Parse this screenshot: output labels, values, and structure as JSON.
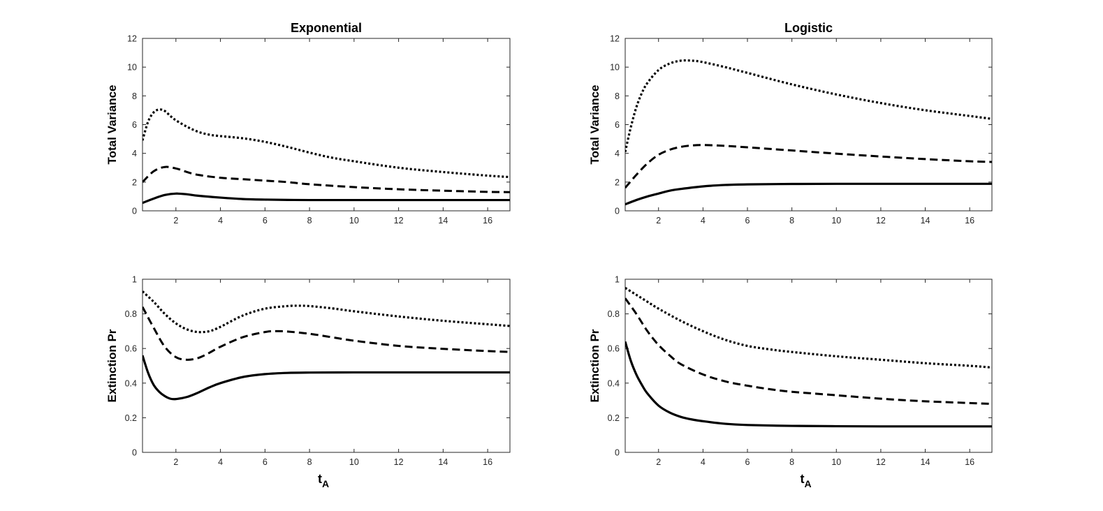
{
  "chart_data": [
    {
      "id": "tl",
      "type": "line",
      "title": "Exponential",
      "xlabel": "",
      "ylabel": "Total Variance",
      "xlim": [
        0.5,
        17
      ],
      "ylim": [
        0,
        12
      ],
      "xticks": [
        2,
        4,
        6,
        8,
        10,
        12,
        14,
        16
      ],
      "yticks": [
        0,
        2,
        4,
        6,
        8,
        10,
        12
      ],
      "grid": false,
      "series": [
        {
          "name": "solid",
          "style": "solid",
          "x": [
            0.5,
            1,
            1.5,
            2,
            2.5,
            3,
            4,
            5,
            6,
            7,
            8,
            10,
            12,
            14,
            16,
            17
          ],
          "values": [
            0.55,
            0.85,
            1.1,
            1.2,
            1.15,
            1.05,
            0.92,
            0.82,
            0.78,
            0.76,
            0.75,
            0.75,
            0.75,
            0.75,
            0.75,
            0.75
          ]
        },
        {
          "name": "dashed",
          "style": "dashed",
          "x": [
            0.5,
            1,
            1.5,
            2,
            2.5,
            3,
            4,
            5,
            6,
            7,
            8,
            10,
            12,
            14,
            16,
            17
          ],
          "values": [
            2.0,
            2.75,
            3.05,
            2.95,
            2.7,
            2.5,
            2.3,
            2.2,
            2.1,
            2.0,
            1.85,
            1.65,
            1.5,
            1.4,
            1.32,
            1.3
          ]
        },
        {
          "name": "dotted",
          "style": "dotted",
          "x": [
            0.5,
            0.75,
            1,
            1.25,
            1.5,
            1.75,
            2,
            2.5,
            3,
            3.5,
            4,
            5,
            6,
            7,
            8,
            9,
            10,
            12,
            14,
            16,
            17
          ],
          "values": [
            4.9,
            6.2,
            6.85,
            7.05,
            6.95,
            6.6,
            6.3,
            5.85,
            5.5,
            5.3,
            5.2,
            5.05,
            4.8,
            4.45,
            4.05,
            3.7,
            3.45,
            3.0,
            2.7,
            2.45,
            2.35
          ]
        }
      ]
    },
    {
      "id": "tr",
      "type": "line",
      "title": "Logistic",
      "xlabel": "",
      "ylabel": "Total Variance",
      "xlim": [
        0.5,
        17
      ],
      "ylim": [
        0,
        12
      ],
      "xticks": [
        2,
        4,
        6,
        8,
        10,
        12,
        14,
        16
      ],
      "yticks": [
        0,
        2,
        4,
        6,
        8,
        10,
        12
      ],
      "grid": false,
      "series": [
        {
          "name": "solid",
          "style": "solid",
          "x": [
            0.5,
            1,
            1.5,
            2,
            2.5,
            3,
            4,
            5,
            6,
            8,
            10,
            12,
            14,
            16,
            17
          ],
          "values": [
            0.45,
            0.75,
            1.0,
            1.2,
            1.4,
            1.52,
            1.7,
            1.8,
            1.84,
            1.87,
            1.88,
            1.88,
            1.88,
            1.88,
            1.88
          ]
        },
        {
          "name": "dashed",
          "style": "dashed",
          "x": [
            0.5,
            1,
            1.5,
            2,
            2.5,
            3,
            3.5,
            4,
            5,
            6,
            8,
            10,
            12,
            14,
            16,
            17
          ],
          "values": [
            1.6,
            2.5,
            3.3,
            3.9,
            4.25,
            4.45,
            4.55,
            4.58,
            4.52,
            4.42,
            4.2,
            3.98,
            3.78,
            3.6,
            3.45,
            3.4
          ]
        },
        {
          "name": "dotted",
          "style": "dotted",
          "x": [
            0.5,
            0.75,
            1,
            1.25,
            1.5,
            2,
            2.5,
            3,
            3.5,
            4,
            5,
            6,
            8,
            10,
            12,
            14,
            16,
            17
          ],
          "values": [
            4.1,
            5.8,
            7.2,
            8.2,
            8.9,
            9.8,
            10.25,
            10.45,
            10.45,
            10.35,
            10.0,
            9.6,
            8.8,
            8.1,
            7.5,
            7.0,
            6.6,
            6.4
          ]
        }
      ]
    },
    {
      "id": "bl",
      "type": "line",
      "title": "",
      "xlabel": "t",
      "xlabel_sub": "A",
      "ylabel": "Extinction Pr",
      "xlim": [
        0.5,
        17
      ],
      "ylim": [
        0,
        1
      ],
      "xticks": [
        2,
        4,
        6,
        8,
        10,
        12,
        14,
        16
      ],
      "yticks": [
        0,
        0.2,
        0.4,
        0.6,
        0.8,
        1
      ],
      "grid": false,
      "series": [
        {
          "name": "solid",
          "style": "solid",
          "x": [
            0.5,
            0.75,
            1,
            1.25,
            1.5,
            1.75,
            2,
            2.5,
            3,
            3.5,
            4,
            5,
            6,
            7,
            8,
            10,
            12,
            14,
            16,
            17
          ],
          "values": [
            0.56,
            0.46,
            0.39,
            0.35,
            0.325,
            0.31,
            0.308,
            0.32,
            0.345,
            0.375,
            0.4,
            0.435,
            0.452,
            0.459,
            0.461,
            0.462,
            0.462,
            0.462,
            0.462,
            0.462
          ]
        },
        {
          "name": "dashed",
          "style": "dashed",
          "x": [
            0.5,
            1,
            1.5,
            2,
            2.5,
            3,
            3.5,
            4,
            5,
            6,
            6.5,
            7,
            8,
            9,
            10,
            12,
            14,
            16,
            17
          ],
          "values": [
            0.84,
            0.72,
            0.61,
            0.55,
            0.535,
            0.545,
            0.575,
            0.61,
            0.665,
            0.695,
            0.7,
            0.698,
            0.685,
            0.665,
            0.645,
            0.615,
            0.598,
            0.585,
            0.58
          ]
        },
        {
          "name": "dotted",
          "style": "dotted",
          "x": [
            0.5,
            1,
            1.5,
            2,
            2.5,
            3,
            3.5,
            4,
            5,
            6,
            7,
            7.5,
            8,
            9,
            10,
            12,
            14,
            16,
            17
          ],
          "values": [
            0.93,
            0.87,
            0.8,
            0.745,
            0.71,
            0.695,
            0.7,
            0.725,
            0.79,
            0.83,
            0.845,
            0.847,
            0.845,
            0.832,
            0.815,
            0.785,
            0.76,
            0.74,
            0.73
          ]
        }
      ]
    },
    {
      "id": "br",
      "type": "line",
      "title": "",
      "xlabel": "t",
      "xlabel_sub": "A",
      "ylabel": "Extinction Pr",
      "xlim": [
        0.5,
        17
      ],
      "ylim": [
        0,
        1
      ],
      "xticks": [
        2,
        4,
        6,
        8,
        10,
        12,
        14,
        16
      ],
      "yticks": [
        0,
        0.2,
        0.4,
        0.6,
        0.8,
        1
      ],
      "grid": false,
      "series": [
        {
          "name": "solid",
          "style": "solid",
          "x": [
            0.5,
            0.75,
            1,
            1.25,
            1.5,
            2,
            2.5,
            3,
            3.5,
            4,
            5,
            6,
            8,
            10,
            12,
            14,
            16,
            17
          ],
          "values": [
            0.64,
            0.53,
            0.45,
            0.39,
            0.34,
            0.27,
            0.23,
            0.205,
            0.19,
            0.18,
            0.165,
            0.158,
            0.153,
            0.151,
            0.15,
            0.15,
            0.15,
            0.15
          ]
        },
        {
          "name": "dashed",
          "style": "dashed",
          "x": [
            0.5,
            1,
            1.5,
            2,
            2.5,
            3,
            4,
            5,
            6,
            7,
            8,
            10,
            12,
            14,
            16,
            17
          ],
          "values": [
            0.89,
            0.8,
            0.7,
            0.62,
            0.56,
            0.51,
            0.45,
            0.41,
            0.385,
            0.365,
            0.35,
            0.33,
            0.31,
            0.295,
            0.285,
            0.28
          ]
        },
        {
          "name": "dotted",
          "style": "dotted",
          "x": [
            0.5,
            1,
            1.5,
            2,
            3,
            4,
            5,
            6,
            7,
            8,
            10,
            12,
            14,
            16,
            17
          ],
          "values": [
            0.95,
            0.91,
            0.87,
            0.83,
            0.76,
            0.7,
            0.65,
            0.615,
            0.595,
            0.58,
            0.555,
            0.535,
            0.515,
            0.5,
            0.49
          ]
        }
      ]
    }
  ]
}
